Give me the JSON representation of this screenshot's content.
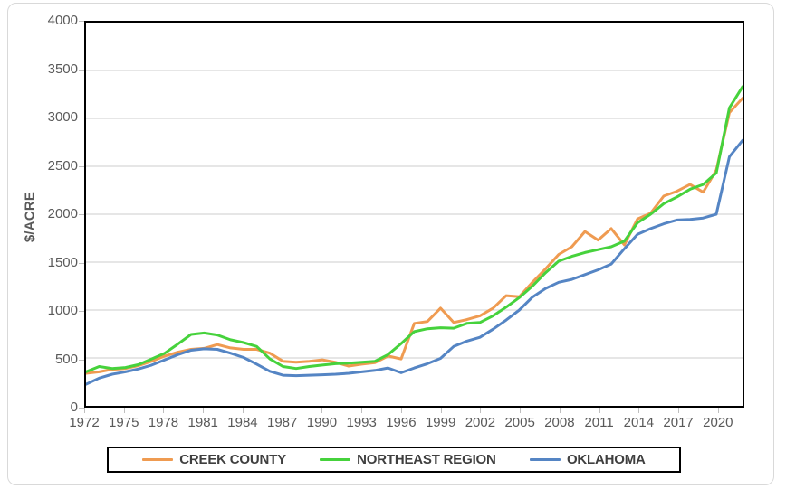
{
  "page": {
    "background": "#FFFFFF",
    "outer_border_color": "#D9D9D9",
    "plot_border_color": "#000000",
    "gridline_color": "#D6D6D6",
    "tick_color": "#BFBFBF",
    "axis_text_color": "#595959",
    "legend_text_color": "#3F3F3F"
  },
  "chart_data": {
    "type": "line",
    "title": "",
    "xlabel": "",
    "ylabel": "$/ACRE",
    "ylim": [
      0,
      4000
    ],
    "y_ticks": [
      0,
      500,
      1000,
      1500,
      2000,
      2500,
      3000,
      3500,
      4000
    ],
    "x": [
      1972,
      1973,
      1974,
      1975,
      1976,
      1977,
      1978,
      1979,
      1980,
      1981,
      1982,
      1983,
      1984,
      1985,
      1986,
      1987,
      1988,
      1989,
      1990,
      1991,
      1992,
      1993,
      1994,
      1995,
      1996,
      1997,
      1998,
      1999,
      2000,
      2001,
      2002,
      2003,
      2004,
      2005,
      2006,
      2007,
      2008,
      2009,
      2010,
      2011,
      2012,
      2013,
      2014,
      2015,
      2016,
      2017,
      2018,
      2019,
      2020,
      2021,
      2022
    ],
    "x_tick_labels": [
      1972,
      1975,
      1978,
      1981,
      1984,
      1987,
      1990,
      1993,
      1996,
      1999,
      2002,
      2005,
      2008,
      2011,
      2014,
      2017,
      2020
    ],
    "grid": "horizontal",
    "legend_position": "bottom",
    "series": [
      {
        "name": "CREEK COUNTY",
        "color": "#EF9B51",
        "values": [
          340,
          355,
          380,
          390,
          420,
          465,
          520,
          560,
          590,
          600,
          640,
          605,
          590,
          590,
          550,
          465,
          455,
          465,
          480,
          455,
          415,
          435,
          450,
          520,
          490,
          860,
          880,
          1020,
          870,
          900,
          940,
          1020,
          1150,
          1140,
          1290,
          1430,
          1580,
          1660,
          1820,
          1730,
          1850,
          1680,
          1950,
          2010,
          2190,
          2240,
          2310,
          2230,
          2460,
          3060,
          3210
        ]
      },
      {
        "name": "NORTHEAST REGION",
        "color": "#46D23C",
        "values": [
          355,
          410,
          390,
          400,
          430,
          490,
          550,
          645,
          745,
          760,
          740,
          690,
          660,
          620,
          490,
          410,
          390,
          410,
          425,
          440,
          445,
          455,
          465,
          535,
          650,
          775,
          805,
          815,
          810,
          860,
          870,
          940,
          1030,
          1130,
          1250,
          1390,
          1510,
          1560,
          1600,
          1630,
          1660,
          1720,
          1910,
          2000,
          2110,
          2180,
          2260,
          2310,
          2430,
          3110,
          3330
        ]
      },
      {
        "name": "OKLAHOMA",
        "color": "#5585C4",
        "values": [
          225,
          290,
          330,
          355,
          385,
          425,
          480,
          535,
          580,
          595,
          590,
          550,
          505,
          435,
          360,
          320,
          315,
          320,
          325,
          330,
          340,
          355,
          370,
          395,
          345,
          395,
          440,
          495,
          620,
          675,
          715,
          800,
          895,
          1000,
          1135,
          1225,
          1290,
          1320,
          1370,
          1420,
          1480,
          1640,
          1790,
          1850,
          1900,
          1940,
          1945,
          1960,
          2000,
          2600,
          2770
        ]
      }
    ]
  }
}
